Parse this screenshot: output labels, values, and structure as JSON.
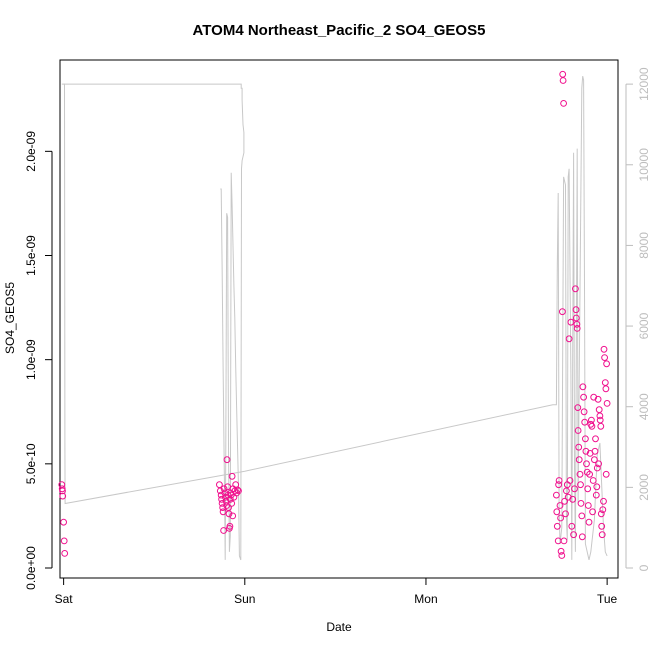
{
  "chart_data": {
    "type": "scatter",
    "title": "ATOM4 Northeast_Pacific_2 SO4_GEOS5",
    "xlabel": "Date",
    "ylabel": "SO4_GEOS5",
    "x_unit": "days",
    "x_ticks": [
      {
        "value": 0,
        "label": "Sat"
      },
      {
        "value": 1,
        "label": "Sun"
      },
      {
        "value": 2,
        "label": "Mon"
      },
      {
        "value": 3,
        "label": "Tue"
      }
    ],
    "xlim": [
      -0.02,
      3.06
    ],
    "ylim": [
      0,
      2.4e-09
    ],
    "y_ticks": [
      {
        "value": 0,
        "label": "0.0e+00"
      },
      {
        "value": 5e-10,
        "label": "5.0e-10"
      },
      {
        "value": 1e-09,
        "label": "1.0e-09"
      },
      {
        "value": 1.5e-09,
        "label": "1.5e-09"
      },
      {
        "value": 2e-09,
        "label": "2.0e-09"
      }
    ],
    "y2lim": [
      0,
      12400
    ],
    "y2_ticks": [
      {
        "value": 0,
        "label": "0"
      },
      {
        "value": 2000,
        "label": "2000"
      },
      {
        "value": 4000,
        "label": "4000"
      },
      {
        "value": 6000,
        "label": "6000"
      },
      {
        "value": 8000,
        "label": "8000"
      },
      {
        "value": 10000,
        "label": "10000"
      },
      {
        "value": 12000,
        "label": "12000"
      }
    ],
    "grid": false,
    "colors": {
      "points": "#f0118e",
      "line": "#c8c8c8",
      "axes": "#000000",
      "right_axis": "#bdbdbd"
    },
    "series": [
      {
        "kind": "points",
        "axis": "left",
        "points": [
          [
            -0.01,
            4e-10
          ],
          [
            -0.008,
            3.8e-10
          ],
          [
            -0.006,
            3.7e-10
          ],
          [
            -0.005,
            3.45e-10
          ],
          [
            0.0,
            2.2e-10
          ],
          [
            0.003,
            1.3e-10
          ],
          [
            0.006,
            7e-11
          ],
          [
            0.86,
            4e-10
          ],
          [
            0.865,
            3.7e-10
          ],
          [
            0.87,
            3.5e-10
          ],
          [
            0.872,
            3.3e-10
          ],
          [
            0.875,
            3.1e-10
          ],
          [
            0.878,
            2.9e-10
          ],
          [
            0.88,
            2.7e-10
          ],
          [
            0.883,
            1.8e-10
          ],
          [
            0.886,
            3.8e-10
          ],
          [
            0.89,
            3.6e-10
          ],
          [
            0.893,
            3.4e-10
          ],
          [
            0.896,
            3.2e-10
          ],
          [
            0.9,
            3e-10
          ],
          [
            0.902,
            5.2e-10
          ],
          [
            0.905,
            3.9e-10
          ],
          [
            0.908,
            3.5e-10
          ],
          [
            0.91,
            2.9e-10
          ],
          [
            0.913,
            2.6e-10
          ],
          [
            0.915,
            1.9e-10
          ],
          [
            0.918,
            2e-10
          ],
          [
            0.92,
            3.3e-10
          ],
          [
            0.923,
            3.6e-10
          ],
          [
            0.925,
            3.5e-10
          ],
          [
            0.928,
            3.1e-10
          ],
          [
            0.93,
            4.4e-10
          ],
          [
            0.933,
            2.5e-10
          ],
          [
            0.935,
            3.8e-10
          ],
          [
            0.94,
            3.4e-10
          ],
          [
            0.945,
            3.7e-10
          ],
          [
            0.95,
            4e-10
          ],
          [
            0.955,
            3.6e-10
          ],
          [
            0.96,
            3.75e-10
          ],
          [
            0.965,
            3.7e-10
          ],
          [
            2.72,
            3.5e-10
          ],
          [
            2.722,
            2.7e-10
          ],
          [
            2.725,
            2e-10
          ],
          [
            2.73,
            1.3e-10
          ],
          [
            2.732,
            4e-10
          ],
          [
            2.735,
            4.2e-10
          ],
          [
            2.74,
            3e-10
          ],
          [
            2.743,
            2.4e-10
          ],
          [
            2.746,
            8e-11
          ],
          [
            2.75,
            6e-11
          ],
          [
            2.753,
            1.23e-09
          ],
          [
            2.755,
            2.37e-09
          ],
          [
            2.757,
            2.34e-09
          ],
          [
            2.76,
            2.23e-09
          ],
          [
            2.762,
            1.3e-10
          ],
          [
            2.765,
            3.2e-10
          ],
          [
            2.77,
            2.6e-10
          ],
          [
            2.775,
            3.7e-10
          ],
          [
            2.78,
            4e-10
          ],
          [
            2.785,
            3.4e-10
          ],
          [
            2.79,
            1.1e-09
          ],
          [
            2.795,
            4.2e-10
          ],
          [
            2.8,
            1.18e-09
          ],
          [
            2.805,
            2e-10
          ],
          [
            2.81,
            3.3e-10
          ],
          [
            2.815,
            1.6e-10
          ],
          [
            2.82,
            3.8e-10
          ],
          [
            2.825,
            1.34e-09
          ],
          [
            2.828,
            1.24e-09
          ],
          [
            2.83,
            1.2e-09
          ],
          [
            2.833,
            1.17e-09
          ],
          [
            2.835,
            1.15e-09
          ],
          [
            2.838,
            7.7e-10
          ],
          [
            2.84,
            6.6e-10
          ],
          [
            2.843,
            5.8e-10
          ],
          [
            2.846,
            5.2e-10
          ],
          [
            2.85,
            4.5e-10
          ],
          [
            2.853,
            4e-10
          ],
          [
            2.856,
            3.1e-10
          ],
          [
            2.86,
            2.5e-10
          ],
          [
            2.863,
            1.5e-10
          ],
          [
            2.866,
            8.7e-10
          ],
          [
            2.87,
            8.2e-10
          ],
          [
            2.873,
            7.5e-10
          ],
          [
            2.876,
            7e-10
          ],
          [
            2.88,
            6.2e-10
          ],
          [
            2.883,
            5.6e-10
          ],
          [
            2.886,
            5e-10
          ],
          [
            2.89,
            4.6e-10
          ],
          [
            2.893,
            3.8e-10
          ],
          [
            2.896,
            3e-10
          ],
          [
            2.9,
            2.2e-10
          ],
          [
            2.903,
            4.5e-10
          ],
          [
            2.906,
            5.5e-10
          ],
          [
            2.91,
            6.9e-10
          ],
          [
            2.913,
            7.1e-10
          ],
          [
            2.916,
            6.8e-10
          ],
          [
            2.92,
            2.7e-10
          ],
          [
            2.923,
            4.2e-10
          ],
          [
            2.926,
            8.2e-10
          ],
          [
            2.93,
            5.2e-10
          ],
          [
            2.933,
            5.6e-10
          ],
          [
            2.936,
            6.2e-10
          ],
          [
            2.94,
            3.5e-10
          ],
          [
            2.943,
            3.9e-10
          ],
          [
            2.946,
            4.8e-10
          ],
          [
            2.95,
            8.1e-10
          ],
          [
            2.953,
            5e-10
          ],
          [
            2.956,
            7.6e-10
          ],
          [
            2.96,
            7.3e-10
          ],
          [
            2.962,
            7.1e-10
          ],
          [
            2.965,
            6.8e-10
          ],
          [
            2.968,
            2.6e-10
          ],
          [
            2.97,
            2e-10
          ],
          [
            2.973,
            1.6e-10
          ],
          [
            2.976,
            2.8e-10
          ],
          [
            2.98,
            3.2e-10
          ],
          [
            2.983,
            1.05e-09
          ],
          [
            2.986,
            1.01e-09
          ],
          [
            2.99,
            8.9e-10
          ],
          [
            2.993,
            8.6e-10
          ],
          [
            2.995,
            4.5e-10
          ],
          [
            2.997,
            9.8e-10
          ],
          [
            3.0,
            7.9e-10
          ]
        ]
      },
      {
        "kind": "line",
        "axis": "right",
        "points": [
          [
            -0.01,
            12000
          ],
          [
            0.01,
            12000
          ],
          [
            0.58,
            12000
          ],
          [
            0.98,
            12000
          ],
          [
            0.98,
            11900
          ],
          [
            0.985,
            11900
          ],
          [
            0.985,
            11600
          ],
          [
            0.99,
            11000
          ],
          [
            0.995,
            10800
          ],
          [
            0.995,
            10300
          ],
          [
            0.99,
            10200
          ],
          [
            0.985,
            10100
          ],
          [
            0.982,
            9900
          ],
          [
            0.978,
            200
          ],
          [
            0.97,
            300
          ],
          [
            0.965,
            2000
          ],
          [
            0.955,
            4000
          ],
          [
            0.95,
            5000
          ],
          [
            0.945,
            6200
          ],
          [
            0.94,
            7000
          ],
          [
            0.935,
            8000
          ],
          [
            0.93,
            9000
          ],
          [
            0.925,
            9800
          ],
          [
            0.92,
            800
          ],
          [
            0.915,
            400
          ],
          [
            0.91,
            3000
          ],
          [
            0.905,
            8700
          ],
          [
            0.9,
            8800
          ],
          [
            0.895,
            3000
          ],
          [
            0.892,
            200
          ],
          [
            0.888,
            2000
          ],
          [
            0.885,
            3000
          ],
          [
            0.88,
            5000
          ],
          [
            0.875,
            7500
          ],
          [
            0.87,
            9400
          ],
          [
            0.865,
            9400
          ]
        ]
      },
      {
        "kind": "line",
        "axis": "right",
        "points": [
          [
            0.0,
            12000
          ],
          [
            0.005,
            12000
          ],
          [
            0.006,
            8000
          ],
          [
            0.007,
            3000
          ],
          [
            0.008,
            1600
          ],
          [
            1.0,
            2400
          ],
          [
            2.7,
            4050
          ],
          [
            2.72,
            4050
          ],
          [
            2.725,
            7500
          ],
          [
            2.73,
            9300
          ],
          [
            2.735,
            1500
          ],
          [
            2.74,
            600
          ],
          [
            2.75,
            1000
          ],
          [
            2.76,
            9700
          ],
          [
            2.77,
            9500
          ],
          [
            2.775,
            1200
          ],
          [
            2.78,
            700
          ],
          [
            2.785,
            9700
          ],
          [
            2.79,
            9900
          ],
          [
            2.8,
            4800
          ],
          [
            2.805,
            200
          ],
          [
            2.815,
            10300
          ],
          [
            2.82,
            2500
          ],
          [
            2.825,
            400
          ],
          [
            2.835,
            10400
          ],
          [
            2.84,
            1600
          ],
          [
            2.86,
            11900
          ],
          [
            2.865,
            12200
          ],
          [
            2.87,
            12100
          ],
          [
            2.875,
            7000
          ],
          [
            2.88,
            600
          ],
          [
            2.9,
            200
          ],
          [
            2.91,
            400
          ],
          [
            2.93,
            1200
          ],
          [
            2.945,
            2800
          ],
          [
            2.96,
            3100
          ],
          [
            2.98,
            1000
          ],
          [
            2.99,
            400
          ],
          [
            3.0,
            300
          ]
        ]
      }
    ]
  }
}
